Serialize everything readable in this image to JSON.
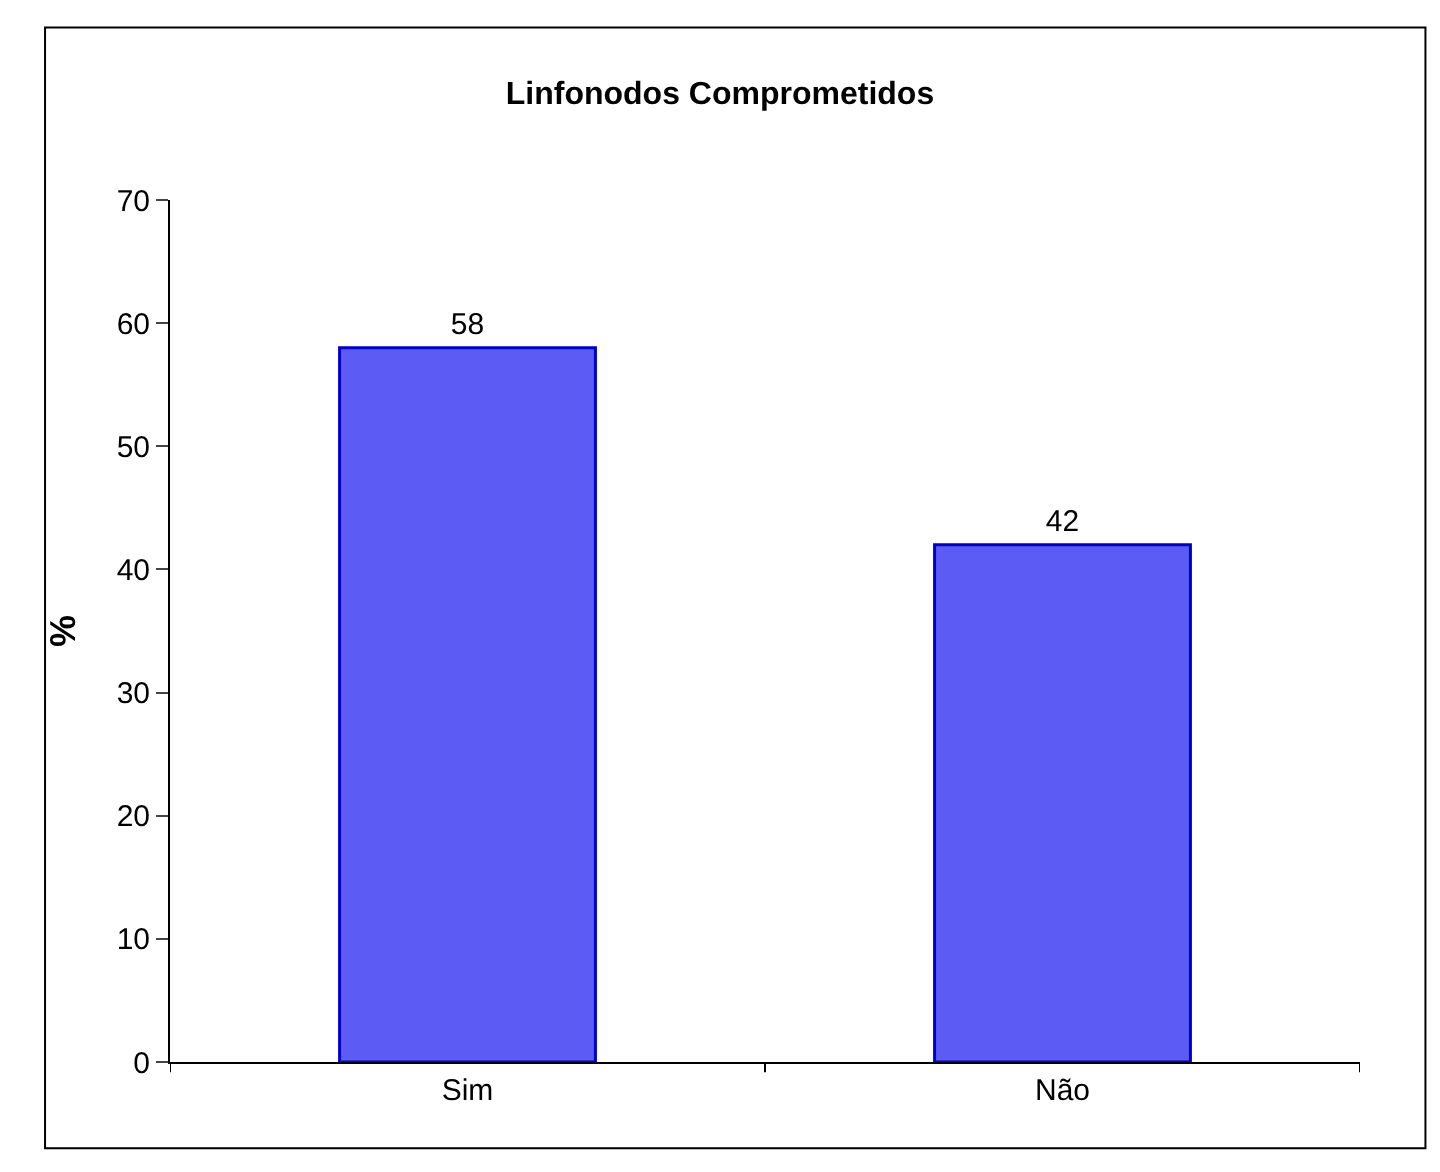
{
  "chart_data": {
    "type": "bar",
    "title": "Linfonodos Comprometidos",
    "ylabel": "%",
    "categories": [
      "Sim",
      "Não"
    ],
    "values": [
      58,
      42
    ],
    "color": "#5c5cf5",
    "ylim": [
      0,
      70
    ],
    "yticks": [
      0,
      10,
      20,
      30,
      40,
      50,
      60,
      70
    ],
    "data_labels": true
  }
}
